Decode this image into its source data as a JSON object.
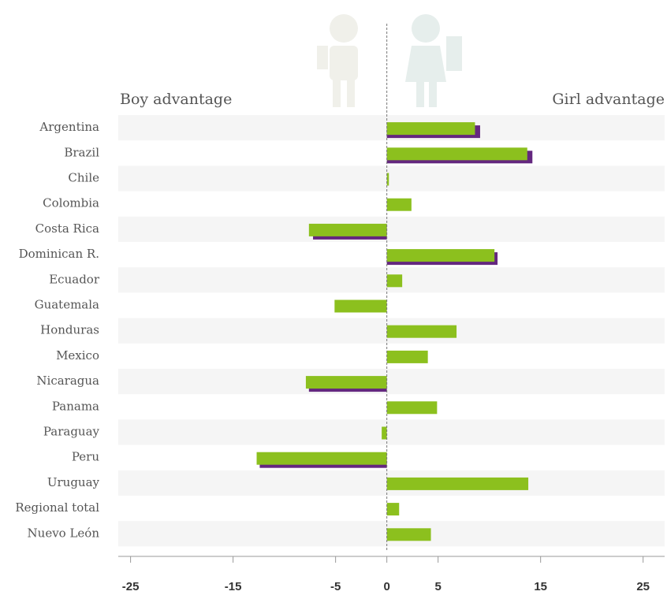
{
  "chart_data": {
    "type": "bar",
    "orientation": "horizontal",
    "left_label": "Boy advantage",
    "right_label": "Girl advantage",
    "categories": [
      "Argentina",
      "Brazil",
      "Chile",
      "Colombia",
      "Costa Rica",
      "Dominican R.",
      "Ecuador",
      "Guatemala",
      "Honduras",
      "Mexico",
      "Nicaragua",
      "Panama",
      "Paraguay",
      "Peru",
      "Uruguay",
      "Regional total",
      "Nuevo León"
    ],
    "series": [
      {
        "color": "#64277f",
        "values": [
          9.1,
          14.2,
          null,
          null,
          -7.2,
          10.8,
          null,
          null,
          null,
          null,
          -7.6,
          null,
          null,
          -12.4,
          null,
          null,
          null
        ]
      },
      {
        "color": "#8cc01e",
        "values": [
          8.6,
          13.7,
          0.2,
          2.4,
          -7.6,
          10.5,
          1.5,
          -5.1,
          6.8,
          4.0,
          -7.9,
          4.9,
          -0.5,
          -12.7,
          13.8,
          1.2,
          4.3
        ]
      }
    ],
    "xlim": [
      -26.2,
      27.1
    ],
    "xticks": [
      -25,
      -15,
      -5,
      0,
      5,
      15,
      25
    ]
  }
}
